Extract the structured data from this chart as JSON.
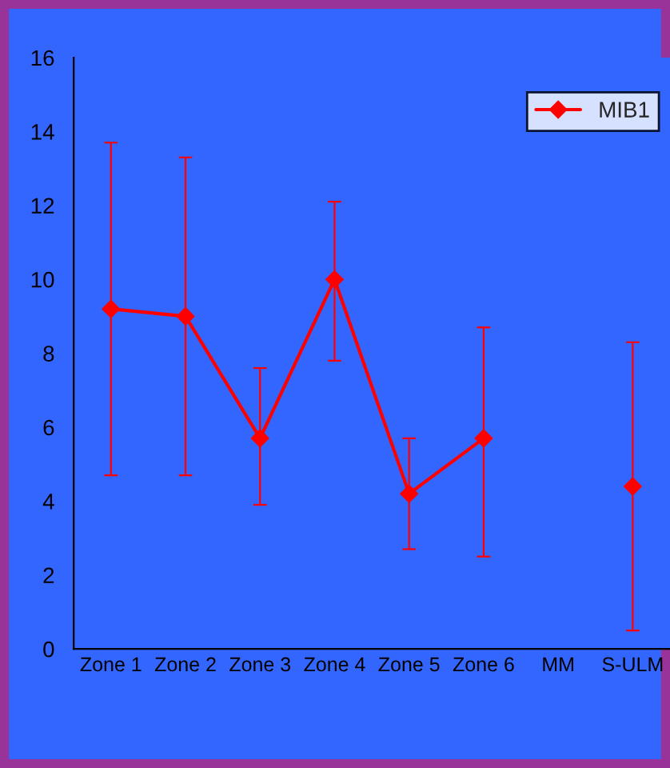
{
  "chart_data": {
    "type": "line",
    "categories": [
      "Zone 1",
      "Zone 2",
      "Zone 3",
      "Zone 4",
      "Zone 5",
      "Zone 6",
      "MM",
      "S-ULM"
    ],
    "series": [
      {
        "name": "MIB1",
        "color": "#ff0000",
        "values": [
          9.2,
          9.0,
          5.7,
          10.0,
          4.2,
          5.7,
          null,
          4.4
        ],
        "errors": [
          [
            4.7,
            13.7
          ],
          [
            4.7,
            13.3
          ],
          [
            3.9,
            7.6
          ],
          [
            7.8,
            12.1
          ],
          [
            2.7,
            5.7
          ],
          [
            2.5,
            8.7
          ],
          null,
          [
            0.5,
            8.3
          ]
        ]
      }
    ],
    "ylim": [
      0,
      16
    ],
    "yticks": [
      0,
      2,
      4,
      6,
      8,
      10,
      12,
      14,
      16
    ],
    "grid": false,
    "legend": "top right",
    "marker": "diamond",
    "line_style": "solid"
  }
}
